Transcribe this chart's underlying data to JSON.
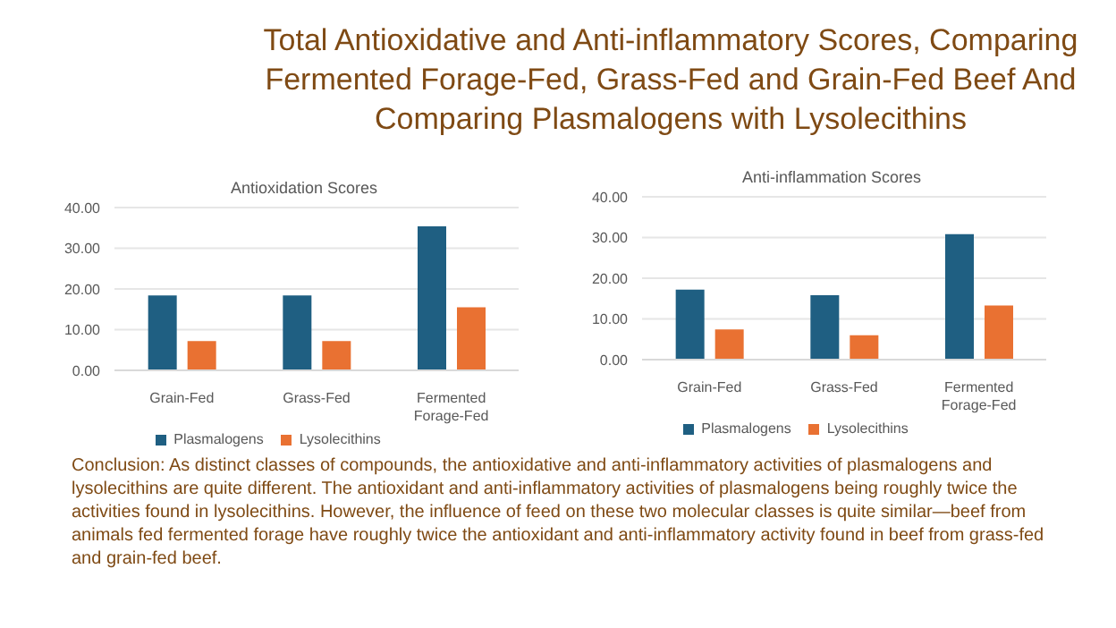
{
  "chart_data": [
    {
      "type": "other",
      "title": "Total Antioxidative and Anti-inflammatory Scores, Comparing Fermented Forage-Fed, Grass-Fed and Grain-Fed Beef And Comparing Plasmalogens with Lysolecithins"
    },
    {
      "type": "bar",
      "title": "Antioxidation Scores",
      "categories": [
        "Grain-Fed",
        "Grass-Fed",
        "Fermented Forage-Fed"
      ],
      "series": [
        {
          "name": "Plasmalogens",
          "color": "#1f5f82",
          "values": [
            18.4,
            18.4,
            35.4
          ]
        },
        {
          "name": "Lysolecithins",
          "color": "#e97132",
          "values": [
            7.2,
            7.2,
            15.5
          ]
        }
      ],
      "ylim": [
        0,
        40
      ],
      "yticks": [
        {
          "value": 0,
          "label": "0.00"
        },
        {
          "value": 10,
          "label": "10.00"
        },
        {
          "value": 20,
          "label": "20.00"
        },
        {
          "value": 30,
          "label": "30.00"
        },
        {
          "value": 40,
          "label": "40.00"
        }
      ],
      "grid": "y",
      "legend": "bottom"
    },
    {
      "type": "bar",
      "title": "Anti-inflammation Scores",
      "categories": [
        "Grain-Fed",
        "Grass-Fed",
        "Fermented Forage-Fed"
      ],
      "series": [
        {
          "name": "Plasmalogens",
          "color": "#1f5f82",
          "values": [
            17.2,
            15.8,
            30.8
          ]
        },
        {
          "name": "Lysolecithins",
          "color": "#e97132",
          "values": [
            7.4,
            6.0,
            13.3
          ]
        }
      ],
      "ylim": [
        0,
        40
      ],
      "yticks": [
        {
          "value": 0,
          "label": "0.00"
        },
        {
          "value": 10,
          "label": "10.00"
        },
        {
          "value": 20,
          "label": "20.00"
        },
        {
          "value": 30,
          "label": "30.00"
        },
        {
          "value": 40,
          "label": "40.00"
        }
      ],
      "grid": "y",
      "legend": "bottom"
    },
    {
      "type": "other",
      "annotations": [
        "Conclusion: As distinct classes of compounds, the antioxidative and anti-inflammatory activities of plasmalogens and lysolecithins are quite different. The antioxidant and anti-inflammatory activities of plasmalogens being roughly twice the activities found in lysolecithins. However, the influence of feed on these two molecular classes is quite similar—beef from animals fed fermented forage have roughly twice the antioxidant and anti-inflammatory activity found in beef from grass-fed and grain-fed beef."
      ]
    }
  ]
}
